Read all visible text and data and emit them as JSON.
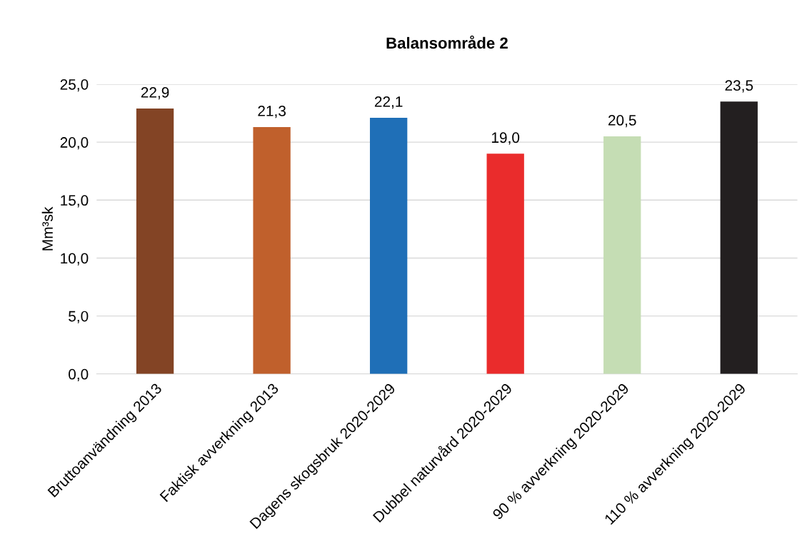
{
  "chart_data": {
    "type": "bar",
    "title": "Balansområde 2",
    "ylabel": "Mm³sk",
    "categories": [
      "Bruttoanvändning 2013",
      "Faktisk avverkning 2013",
      "Dagens skogsbruk 2020-2029",
      "Dubbel naturvård 2020-2029",
      "90 % avverkning 2020-2029",
      "110 % avverkning 2020-2029"
    ],
    "values": [
      22.9,
      21.3,
      22.1,
      19.0,
      20.5,
      23.5
    ],
    "colors": [
      "#834425",
      "#c0602c",
      "#1f6fb7",
      "#ea2c2c",
      "#c5ddb4",
      "#231f20"
    ],
    "value_labels": [
      "22,9",
      "21,3",
      "22,1",
      "19,0",
      "20,5",
      "23,5"
    ],
    "ylim": [
      0,
      25
    ],
    "yticks": [
      {
        "value": 0,
        "label": "0,0"
      },
      {
        "value": 5,
        "label": "5,0"
      },
      {
        "value": 10,
        "label": "10,0"
      },
      {
        "value": 15,
        "label": "15,0"
      },
      {
        "value": 20,
        "label": "20,0"
      },
      {
        "value": 25,
        "label": "25,0"
      }
    ],
    "grid": "y",
    "legend": false
  }
}
